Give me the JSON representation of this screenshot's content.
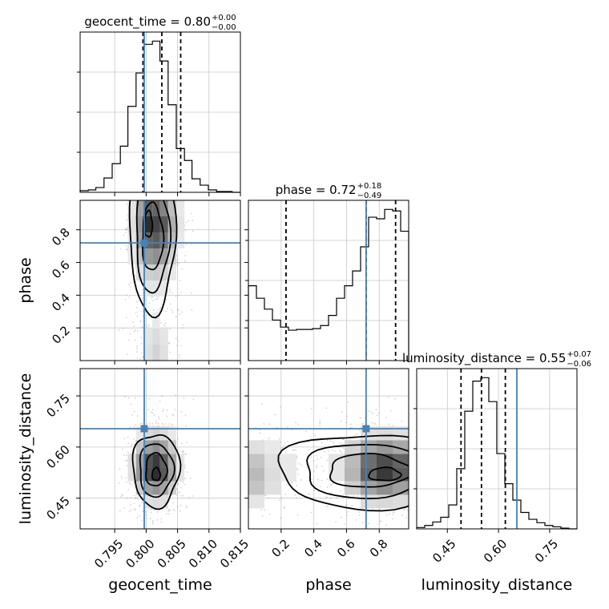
{
  "chart_data": {
    "type": "corner",
    "parameters": [
      "geocent_time",
      "phase",
      "luminosity_distance"
    ],
    "truths": {
      "geocent_time": 0.7997,
      "phase": 0.7196,
      "luminosity_distance": 0.6538
    },
    "quantiles": {
      "geocent_time": [
        0.7995,
        0.8025,
        0.8055
      ],
      "phase": [
        0.23,
        0.72,
        0.9
      ],
      "luminosity_distance": [
        0.49,
        0.55,
        0.62
      ]
    },
    "titles": {
      "geocent_time": {
        "name": "geocent_time",
        "value": "0.80",
        "plus": "+0.00",
        "minus": "−0.00"
      },
      "phase": {
        "name": "phase",
        "value": "0.72",
        "plus": "+0.18",
        "minus": "−0.49"
      },
      "luminosity_distance": {
        "name": "luminosity_distance",
        "value": "0.55",
        "plus": "+0.07",
        "minus": "−0.06"
      }
    },
    "axes": {
      "geocent_time": {
        "range": [
          0.7895,
          0.815
        ],
        "ticks": [
          0.795,
          0.8,
          0.805,
          0.81,
          0.815
        ],
        "tick_labels": [
          "0.795",
          "0.800",
          "0.805",
          "0.810",
          "0.815"
        ]
      },
      "phase": {
        "range": [
          0.0,
          0.98
        ],
        "ticks": [
          0.2,
          0.4,
          0.6,
          0.8
        ],
        "tick_labels": [
          "0.2",
          "0.4",
          "0.6",
          "0.8"
        ]
      },
      "luminosity_distance": {
        "range": [
          0.36,
          0.83
        ],
        "ticks": [
          0.45,
          0.6,
          0.75
        ],
        "tick_labels": [
          "0.45",
          "0.60",
          "0.75"
        ]
      }
    },
    "histograms": {
      "geocent_time": {
        "edges": [
          0.7895,
          0.7908,
          0.792,
          0.7933,
          0.7946,
          0.7959,
          0.7971,
          0.7984,
          0.7997,
          0.801,
          0.8022,
          0.8035,
          0.8048,
          0.8061,
          0.8073,
          0.8086,
          0.8099,
          0.8112,
          0.8124,
          0.8137,
          0.815
        ],
        "counts": [
          2,
          3,
          6,
          18,
          36,
          58,
          108,
          150,
          186,
          190,
          165,
          110,
          55,
          40,
          17,
          9,
          3,
          1,
          1,
          0
        ]
      },
      "phase": {
        "edges": [
          0.0,
          0.049,
          0.098,
          0.147,
          0.196,
          0.245,
          0.294,
          0.343,
          0.392,
          0.441,
          0.49,
          0.539,
          0.588,
          0.637,
          0.686,
          0.735,
          0.784,
          0.833,
          0.882,
          0.931,
          0.98
        ],
        "counts": [
          96,
          80,
          66,
          52,
          43,
          39,
          40,
          40,
          41,
          45,
          58,
          80,
          96,
          115,
          146,
          184,
          182,
          194,
          192,
          166
        ]
      },
      "luminosity_distance": {
        "edges": [
          0.36,
          0.3835,
          0.407,
          0.4305,
          0.454,
          0.4775,
          0.501,
          0.5245,
          0.548,
          0.5715,
          0.595,
          0.6185,
          0.642,
          0.6655,
          0.689,
          0.7125,
          0.736,
          0.7595,
          0.783,
          0.8065,
          0.83
        ],
        "counts": [
          2,
          5,
          10,
          17,
          35,
          88,
          172,
          216,
          221,
          186,
          110,
          66,
          42,
          24,
          14,
          9,
          5,
          3,
          1,
          0
        ]
      }
    },
    "hist2d": {
      "phase_vs_geocent_time": {
        "x": "geocent_time",
        "y": "phase",
        "xedges": [
          0.7959,
          0.7971,
          0.7984,
          0.7997,
          0.801,
          0.8022,
          0.8035,
          0.8048,
          0.8061,
          0.8073
        ],
        "yedges": [
          0.0,
          0.098,
          0.196,
          0.294,
          0.392,
          0.49,
          0.588,
          0.686,
          0.784,
          0.882,
          0.98
        ],
        "density": [
          [
            0.0,
            0.02,
            0.05,
            0.12,
            0.18,
            0.12,
            0.05,
            0.02,
            0.0
          ],
          [
            0.0,
            0.02,
            0.05,
            0.1,
            0.14,
            0.1,
            0.04,
            0.02,
            0.0
          ],
          [
            0.0,
            0.02,
            0.04,
            0.06,
            0.08,
            0.06,
            0.03,
            0.01,
            0.0
          ],
          [
            0.0,
            0.0,
            0.03,
            0.05,
            0.05,
            0.04,
            0.02,
            0.0,
            0.0
          ],
          [
            0.0,
            0.02,
            0.06,
            0.1,
            0.1,
            0.08,
            0.04,
            0.02,
            0.0
          ],
          [
            0.0,
            0.04,
            0.12,
            0.2,
            0.22,
            0.18,
            0.08,
            0.04,
            0.0
          ],
          [
            0.0,
            0.08,
            0.25,
            0.45,
            0.5,
            0.42,
            0.18,
            0.06,
            0.0
          ],
          [
            0.02,
            0.1,
            0.4,
            0.7,
            0.75,
            0.62,
            0.3,
            0.08,
            0.02
          ],
          [
            0.02,
            0.12,
            0.45,
            0.95,
            0.85,
            0.75,
            0.35,
            0.1,
            0.02
          ],
          [
            0.02,
            0.1,
            0.4,
            0.72,
            0.7,
            0.55,
            0.28,
            0.08,
            0.02
          ]
        ]
      },
      "luminosity_distance_vs_geocent_time": {
        "x": "geocent_time",
        "y": "luminosity_distance",
        "xedges": [
          0.7959,
          0.7971,
          0.7984,
          0.7997,
          0.801,
          0.8022,
          0.8035,
          0.8048,
          0.8061,
          0.8073
        ],
        "yedges": [
          0.38,
          0.42,
          0.46,
          0.5,
          0.54,
          0.58,
          0.62,
          0.66,
          0.7,
          0.74
        ],
        "density": [
          [
            0.0,
            0.0,
            0.02,
            0.03,
            0.04,
            0.03,
            0.02,
            0.0,
            0.0
          ],
          [
            0.0,
            0.02,
            0.06,
            0.12,
            0.14,
            0.12,
            0.06,
            0.02,
            0.0
          ],
          [
            0.02,
            0.06,
            0.22,
            0.42,
            0.48,
            0.4,
            0.2,
            0.06,
            0.02
          ],
          [
            0.03,
            0.12,
            0.45,
            0.8,
            0.95,
            0.75,
            0.4,
            0.1,
            0.02
          ],
          [
            0.03,
            0.12,
            0.42,
            0.78,
            0.9,
            0.72,
            0.38,
            0.1,
            0.02
          ],
          [
            0.02,
            0.06,
            0.24,
            0.42,
            0.5,
            0.4,
            0.22,
            0.06,
            0.02
          ],
          [
            0.0,
            0.02,
            0.08,
            0.15,
            0.18,
            0.14,
            0.08,
            0.02,
            0.0
          ],
          [
            0.0,
            0.0,
            0.02,
            0.04,
            0.05,
            0.04,
            0.02,
            0.0,
            0.0
          ],
          [
            0.0,
            0.0,
            0.0,
            0.01,
            0.02,
            0.01,
            0.0,
            0.0,
            0.0
          ]
        ]
      },
      "luminosity_distance_vs_phase": {
        "x": "phase",
        "y": "luminosity_distance",
        "xedges": [
          0.0,
          0.098,
          0.196,
          0.294,
          0.392,
          0.49,
          0.588,
          0.686,
          0.784,
          0.882,
          0.98
        ],
        "yedges": [
          0.38,
          0.42,
          0.46,
          0.5,
          0.54,
          0.58,
          0.62,
          0.66,
          0.7,
          0.74
        ],
        "density": [
          [
            0.02,
            0.0,
            0.0,
            0.0,
            0.0,
            0.0,
            0.02,
            0.04,
            0.05,
            0.04
          ],
          [
            0.1,
            0.05,
            0.02,
            0.0,
            0.0,
            0.02,
            0.06,
            0.14,
            0.16,
            0.14
          ],
          [
            0.25,
            0.12,
            0.06,
            0.04,
            0.04,
            0.06,
            0.2,
            0.4,
            0.5,
            0.42
          ],
          [
            0.3,
            0.14,
            0.08,
            0.06,
            0.06,
            0.1,
            0.32,
            0.7,
            0.9,
            0.74
          ],
          [
            0.25,
            0.12,
            0.08,
            0.06,
            0.06,
            0.1,
            0.3,
            0.65,
            0.8,
            0.7
          ],
          [
            0.12,
            0.08,
            0.06,
            0.04,
            0.04,
            0.06,
            0.18,
            0.38,
            0.45,
            0.38
          ],
          [
            0.04,
            0.02,
            0.02,
            0.02,
            0.02,
            0.02,
            0.06,
            0.12,
            0.14,
            0.12
          ],
          [
            0.0,
            0.0,
            0.0,
            0.0,
            0.0,
            0.0,
            0.02,
            0.04,
            0.04,
            0.03
          ],
          [
            0.0,
            0.0,
            0.0,
            0.0,
            0.0,
            0.0,
            0.0,
            0.01,
            0.01,
            0.0
          ]
        ]
      }
    },
    "contour_levels": [
      0.118,
      0.393,
      0.675,
      0.865
    ],
    "colors": {
      "truth": "#4682b4",
      "hist": "#000000",
      "scatter": "#9e9e9e",
      "grid": "#c8c8c8"
    },
    "grid": true
  }
}
